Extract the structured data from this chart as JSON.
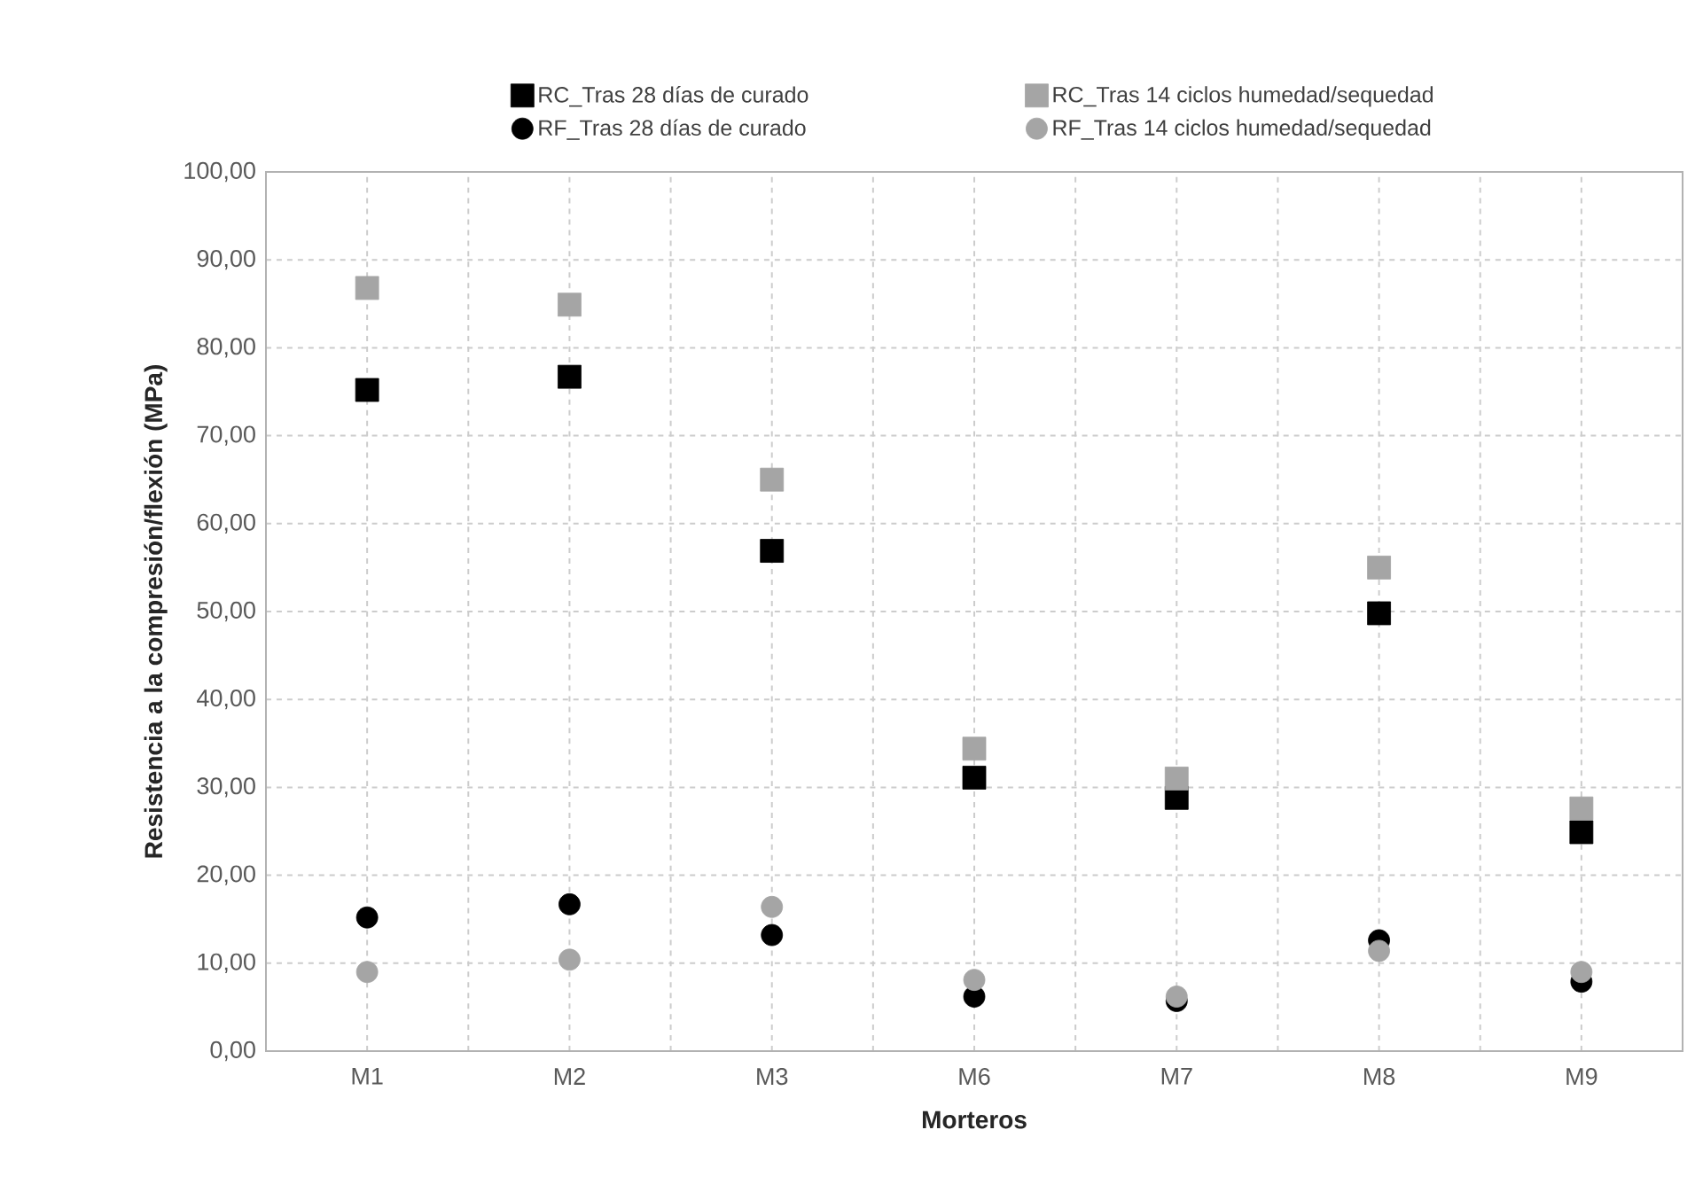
{
  "chart_data": {
    "type": "scatter",
    "xlabel": "Morteros",
    "ylabel": "Resistencia a la compresión/flexión (MPa)",
    "categories": [
      "M1",
      "M2",
      "M3",
      "M6",
      "M7",
      "M8",
      "M9"
    ],
    "series": [
      {
        "name": "RC_Tras 28 días de curado",
        "color": "#000000",
        "marker": "square",
        "values": [
          75.2,
          76.7,
          56.9,
          31.1,
          28.8,
          49.8,
          24.9
        ]
      },
      {
        "name": "RC_Tras 14 ciclos humedad/sequedad",
        "color": "#a5a5a5",
        "marker": "square",
        "values": [
          86.8,
          84.9,
          65.0,
          34.4,
          31.0,
          55.0,
          27.6
        ]
      },
      {
        "name": "RF_Tras 28 días de curado",
        "color": "#000000",
        "marker": "circle",
        "values": [
          15.2,
          16.7,
          13.2,
          6.2,
          5.7,
          12.6,
          7.9
        ]
      },
      {
        "name": "RF_Tras 14 ciclos humedad/sequedad",
        "color": "#a5a5a5",
        "marker": "circle",
        "values": [
          9.0,
          10.4,
          16.4,
          8.1,
          6.2,
          11.4,
          9.0
        ]
      }
    ],
    "ylim": [
      0,
      100
    ],
    "yticks": [
      {
        "value": 0,
        "label": "0,00"
      },
      {
        "value": 10,
        "label": "10,00"
      },
      {
        "value": 20,
        "label": "20,00"
      },
      {
        "value": 30,
        "label": "30,00"
      },
      {
        "value": 40,
        "label": "40,00"
      },
      {
        "value": 50,
        "label": "50,00"
      },
      {
        "value": 60,
        "label": "60,00"
      },
      {
        "value": 70,
        "label": "70,00"
      },
      {
        "value": 80,
        "label": "80,00"
      },
      {
        "value": 90,
        "label": "90,00"
      },
      {
        "value": 100,
        "label": "100,00"
      }
    ],
    "grid": true,
    "legend": "top"
  }
}
